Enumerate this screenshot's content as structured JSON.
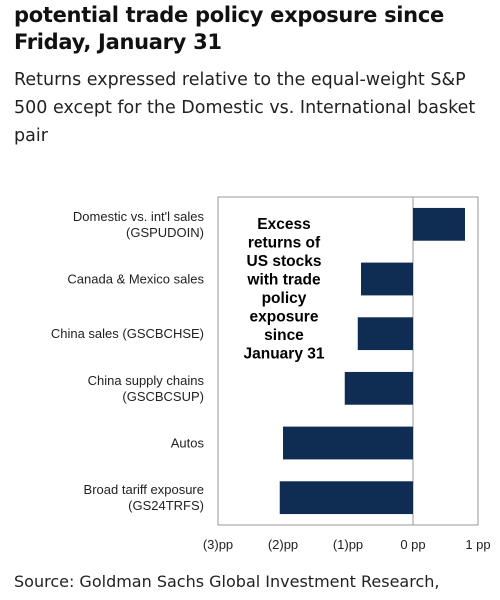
{
  "header": {
    "title": "potential trade policy exposure since Friday, January 31",
    "subtitle": "Returns expressed relative to the equal-weight S&P 500 except for the Domestic vs. International basket pair"
  },
  "source": "Source: Goldman Sachs Global Investment Research,",
  "colors": {
    "bar": "#0f2d52",
    "frame": "#999999"
  },
  "chart_data": {
    "type": "bar",
    "orientation": "horizontal",
    "categories": [
      [
        "Domestic vs. int'l sales",
        "(GSPUDOIN)"
      ],
      [
        "Canada & Mexico sales"
      ],
      [
        "China sales (GSCBCHSE)"
      ],
      [
        "China supply chains",
        "(GSCBCSUP)"
      ],
      [
        "Autos"
      ],
      [
        "Broad tariff exposure",
        "(GS24TRFS)"
      ]
    ],
    "values": [
      0.8,
      -0.8,
      -0.85,
      -1.05,
      -2.0,
      -2.05
    ],
    "xlim": [
      -3,
      1
    ],
    "xticks": [
      -3,
      -2,
      -1,
      0,
      1
    ],
    "xtick_labels": [
      "(3)pp",
      "(2)pp",
      "(1)pp",
      "0 pp",
      "1 pp"
    ],
    "grid": false,
    "annotation": [
      "Excess",
      "returns of",
      "US stocks",
      "with trade",
      "policy",
      "exposure",
      "since",
      "January 31"
    ]
  }
}
